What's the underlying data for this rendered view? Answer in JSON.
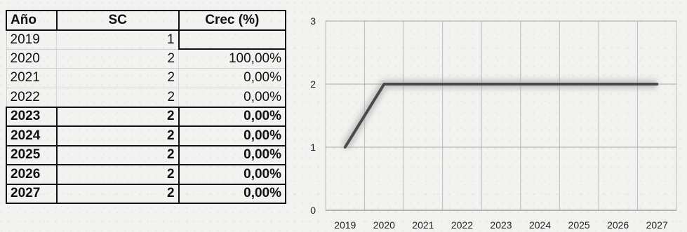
{
  "table": {
    "headers": [
      "Año",
      "SC",
      "Crec  (%)"
    ],
    "rows": [
      {
        "year": "2019",
        "sc": "1",
        "growth": ""
      },
      {
        "year": "2020",
        "sc": "2",
        "growth": "100,00%"
      },
      {
        "year": "2021",
        "sc": "2",
        "growth": "0,00%"
      },
      {
        "year": "2022",
        "sc": "2",
        "growth": "0,00%"
      },
      {
        "year": "2023",
        "sc": "2",
        "growth": "0,00%"
      },
      {
        "year": "2024",
        "sc": "2",
        "growth": "0,00%"
      },
      {
        "year": "2025",
        "sc": "2",
        "growth": "0,00%"
      },
      {
        "year": "2026",
        "sc": "2",
        "growth": "0,00%"
      },
      {
        "year": "2027",
        "sc": "2",
        "growth": "0,00%"
      }
    ],
    "bold_from_year": "2023"
  },
  "chart_data": {
    "type": "line",
    "categories": [
      "2019",
      "2020",
      "2021",
      "2022",
      "2023",
      "2024",
      "2025",
      "2026",
      "2027"
    ],
    "series": [
      {
        "values": [
          1,
          2,
          2,
          2,
          2,
          2,
          2,
          2,
          2
        ],
        "color": "#4a4a4a"
      }
    ],
    "ylim": [
      0,
      3
    ],
    "yticks": [
      "0",
      "1",
      "2",
      "3"
    ],
    "title": "",
    "xlabel": "",
    "ylabel": "",
    "grid": true,
    "legend": "none"
  }
}
